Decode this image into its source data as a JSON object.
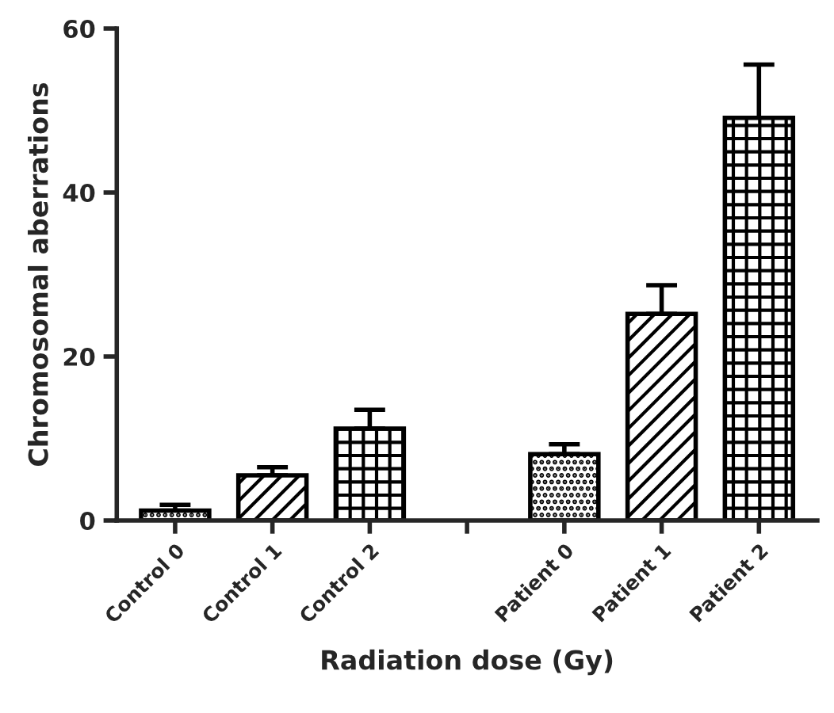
{
  "chart_data": {
    "type": "bar",
    "xlabel": "Radiation dose (Gy)",
    "ylabel": "Chromosomal aberrations",
    "categories": [
      "Control 0",
      "Control 1",
      "Control 2",
      null,
      "Patient 0",
      "Patient 1",
      "Patient 2"
    ],
    "values": [
      1.2,
      5.5,
      11.2,
      null,
      8.1,
      25.2,
      49.1
    ],
    "errors": [
      [
        1.2,
        1.9
      ],
      [
        5.5,
        6.5
      ],
      [
        11.2,
        13.5
      ],
      null,
      [
        8.1,
        9.3
      ],
      [
        25.2,
        28.7
      ],
      [
        49.1,
        55.6
      ]
    ],
    "colors": [
      "#000000",
      "#000000",
      "#000000",
      "#000000",
      "#000000",
      "#000000",
      "#000000"
    ],
    "ylim": [
      0,
      60
    ],
    "yticks": [
      0,
      20,
      40,
      60
    ],
    "grid": false,
    "legend": false
  }
}
